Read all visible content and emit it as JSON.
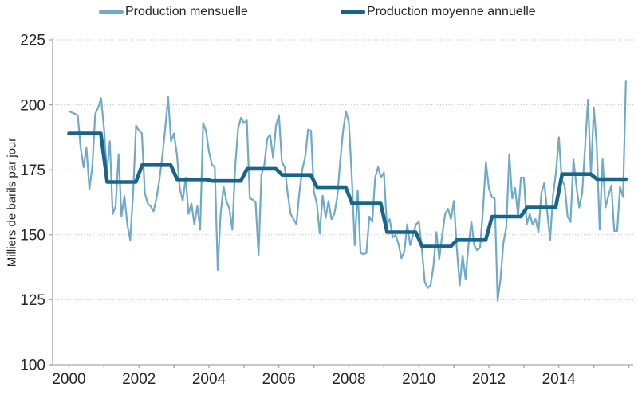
{
  "chart_data": {
    "type": "line",
    "title": "",
    "ylabel": "Milliers de barils par jour",
    "ylim": [
      100,
      225
    ],
    "y_ticks": [
      100,
      125,
      150,
      175,
      200,
      225
    ],
    "x_start_year": 2000,
    "x_end_year": 2016,
    "x_label_years": [
      2000,
      2002,
      2004,
      2006,
      2008,
      2010,
      2012,
      2014
    ],
    "grid": "dotted horizontal gridlines",
    "legend_position": "top",
    "axis_color": "#a6a6a6",
    "gridline_color": "#b3b3b3",
    "text_color": "#262626",
    "series": [
      {
        "name": "Production mensuelle",
        "frequency": "monthly",
        "color": "#70aac6",
        "values": [
          197.5,
          197,
          196.5,
          196,
          183.5,
          176,
          183.5,
          167.5,
          176.5,
          196.5,
          199,
          202.5,
          191,
          174,
          186,
          158,
          161,
          181,
          157,
          165,
          154,
          148,
          166,
          192,
          190,
          189,
          166,
          162,
          161,
          159,
          164,
          171,
          180,
          191,
          203,
          186,
          189,
          181,
          168,
          163,
          172,
          158,
          162,
          154,
          161,
          152,
          193,
          190,
          182,
          177,
          176,
          136.5,
          158,
          168.5,
          163,
          160,
          152,
          176,
          191,
          195,
          193,
          194,
          164,
          163.5,
          162.5,
          142,
          173,
          177,
          187,
          188.5,
          179.5,
          192,
          196,
          178,
          176,
          166,
          158,
          156,
          154,
          166,
          175,
          180,
          190.5,
          190,
          166.5,
          162,
          150.5,
          165,
          156.5,
          163,
          156,
          158,
          164.5,
          178,
          190,
          197.5,
          193,
          172,
          146,
          167,
          143,
          142.5,
          143,
          157,
          155,
          172,
          176,
          172,
          174,
          154,
          156,
          149,
          150,
          146.5,
          141,
          143.5,
          154,
          146,
          150,
          154,
          155,
          145,
          132,
          129.5,
          130.5,
          138,
          151,
          140.5,
          150,
          158,
          160,
          156,
          163,
          145,
          130.5,
          142,
          133,
          146,
          155,
          146,
          144,
          145,
          160,
          178,
          168,
          164.5,
          164,
          124.5,
          133,
          147,
          153,
          181,
          164,
          168,
          157,
          172,
          172,
          154,
          158,
          154,
          156,
          151,
          166,
          170,
          159,
          148,
          165,
          174,
          187.5,
          171,
          169,
          157,
          155,
          179,
          169,
          160.5,
          166,
          184,
          202,
          173,
          199,
          184,
          152,
          179,
          160.5,
          165,
          169,
          151.5,
          151.5,
          168.5,
          164.5,
          209
        ]
      },
      {
        "name": "Production moyenne annuelle",
        "frequency": "annual",
        "color": "#17658a",
        "values": [
          189,
          170.3,
          176.8,
          171.3,
          170.7,
          175.4,
          173,
          168.3,
          162,
          151,
          145.5,
          148,
          157,
          160.5,
          173.3,
          171.4
        ]
      }
    ]
  }
}
